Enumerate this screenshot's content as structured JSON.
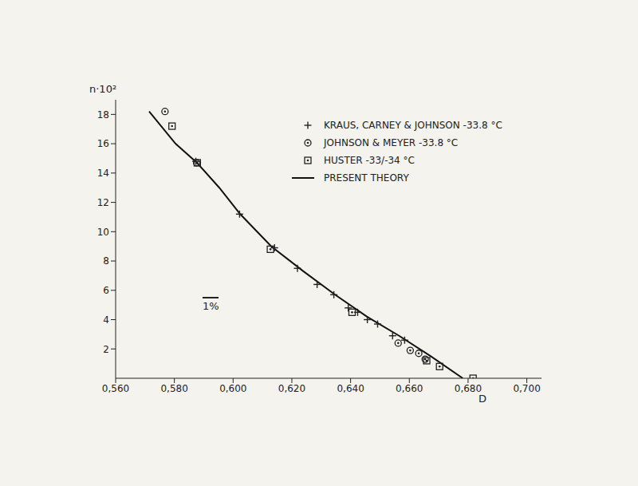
{
  "chart_data": {
    "type": "scatter",
    "x_label": "D",
    "y_label": "n·10²",
    "annotations": [
      "1%"
    ],
    "xlim": [
      0.56,
      0.705
    ],
    "xticks": [
      {
        "value": 0.56,
        "label": "0,560"
      },
      {
        "value": 0.58,
        "label": "0,580"
      },
      {
        "value": 0.6,
        "label": "0,600"
      },
      {
        "value": 0.62,
        "label": "0,620"
      },
      {
        "value": 0.64,
        "label": "0,640"
      },
      {
        "value": 0.66,
        "label": "0,660"
      },
      {
        "value": 0.68,
        "label": "0,680"
      },
      {
        "value": 0.7,
        "label": "0,700"
      }
    ],
    "ylim": [
      0,
      19
    ],
    "yticks": [
      2,
      4,
      6,
      8,
      10,
      12,
      14,
      16,
      18
    ],
    "grid": false,
    "legend": "upper right",
    "series": [
      {
        "name": "KRAUS, CARNEY & JOHNSON -33.8 °C",
        "color": "#222222",
        "marker": "plus",
        "type": "scatter",
        "x": [
          0.5873,
          0.6022,
          0.6141,
          0.6219,
          0.6286,
          0.6343,
          0.6392,
          0.6424,
          0.6457,
          0.6492,
          0.6543,
          0.6584
        ],
        "values": [
          14.8,
          11.2,
          8.9,
          7.5,
          6.4,
          5.7,
          4.8,
          4.5,
          4.0,
          3.7,
          2.9,
          2.6
        ]
      },
      {
        "name": "JOHNSON & MEYER -33.8 °C",
        "color": "#222222",
        "marker": "circle",
        "type": "scatter",
        "x": [
          0.5768,
          0.5876,
          0.6562,
          0.6603,
          0.6632,
          0.6654
        ],
        "values": [
          18.2,
          14.7,
          2.4,
          1.9,
          1.7,
          1.3
        ]
      },
      {
        "name": "HUSTER -33/-34 °C",
        "color": "#222222",
        "marker": "square",
        "type": "scatter",
        "x": [
          0.5792,
          0.5878,
          0.6127,
          0.6405,
          0.6659,
          0.6703,
          0.6817
        ],
        "values": [
          17.2,
          14.7,
          8.8,
          4.5,
          1.2,
          0.8,
          0
        ]
      },
      {
        "name": "PRESENT THEORY",
        "color": "#111111",
        "type": "line",
        "line_style": "solid",
        "x": [
          0.5714,
          0.5804,
          0.5877,
          0.5953,
          0.6024,
          0.613,
          0.6239,
          0.6347,
          0.6456,
          0.6565,
          0.6673,
          0.6782
        ],
        "values": [
          18.2,
          16.0,
          14.7,
          13.0,
          11.2,
          9.0,
          7.3,
          5.7,
          4.2,
          2.9,
          1.5,
          0
        ]
      }
    ]
  }
}
